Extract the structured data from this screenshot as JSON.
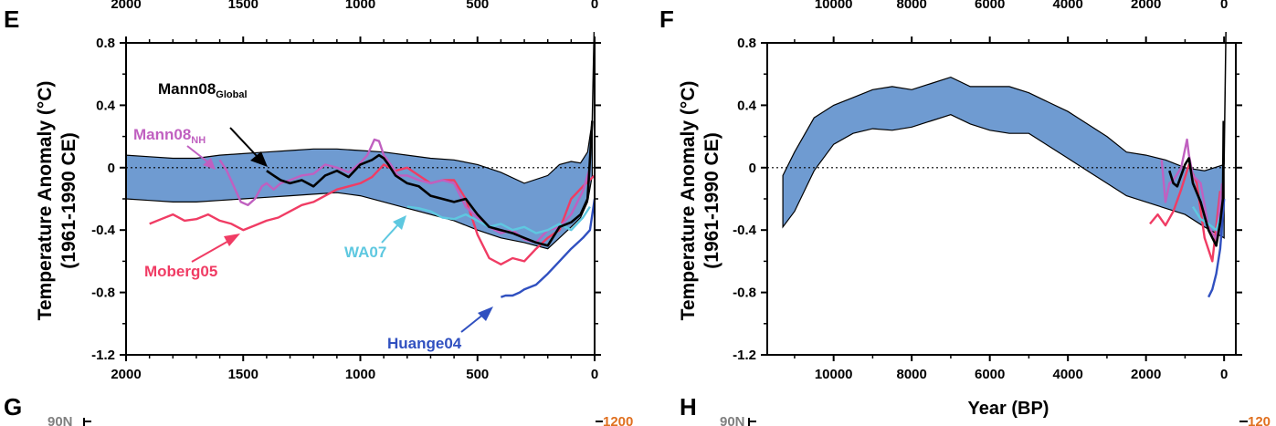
{
  "colors": {
    "band_fill": "#6f9bd1",
    "band_edge": "#000000",
    "mann08_global": "#000000",
    "mann08_nh": "#c060c0",
    "moberg05": "#f03c64",
    "wa07": "#5ec8e0",
    "huange04": "#3050c0"
  },
  "panels": {
    "E": {
      "letter": "E",
      "ylabel_line1": "Temperature Anomaly (°C)",
      "ylabel_line2": "(1961-1990 CE)",
      "annotations": {
        "mann08_global": "Mann08",
        "mann08_global_sub": "Global",
        "mann08_nh": "Mann08",
        "mann08_nh_sub": "NH",
        "moberg05": "Moberg05",
        "wa07": "WA07",
        "huange04": "Huange04"
      }
    },
    "F": {
      "letter": "F",
      "ylabel_line1": "Temperature Anomaly (°C)",
      "ylabel_line2": "(1961-1990 CE)",
      "xlabel": "Year (BP)"
    },
    "G": {
      "letter": "G",
      "lat_label": "90N",
      "right_label": "1200"
    },
    "H": {
      "letter": "H",
      "lat_label": "90N",
      "right_label": "120"
    }
  },
  "chart_data": [
    {
      "type": "line",
      "panel": "E",
      "xlabel": "",
      "ylabel": "Temperature Anomaly (°C) (1961-1990 CE)",
      "xlim": [
        2000,
        0
      ],
      "ylim": [
        -1.2,
        0.8
      ],
      "x_ticks": [
        "2000",
        "1500",
        "1000",
        "500",
        "0"
      ],
      "top_x_ticks": [
        "2000",
        "1500",
        "1000",
        "500",
        "0"
      ],
      "y_ticks": [
        "0.8",
        "0.4",
        "0",
        "-0.4",
        "-0.8",
        "-1.2"
      ],
      "zero_line": "dotted",
      "band": {
        "x": [
          2000,
          1900,
          1800,
          1700,
          1600,
          1500,
          1400,
          1300,
          1200,
          1100,
          1000,
          900,
          800,
          700,
          600,
          500,
          400,
          300,
          200,
          150,
          100,
          60,
          30,
          10
        ],
        "upper": [
          0.08,
          0.07,
          0.06,
          0.06,
          0.08,
          0.09,
          0.1,
          0.11,
          0.12,
          0.12,
          0.11,
          0.1,
          0.08,
          0.06,
          0.05,
          0.02,
          -0.03,
          -0.1,
          -0.05,
          0.02,
          0.04,
          0.03,
          0.1,
          0.3
        ],
        "lower": [
          -0.2,
          -0.21,
          -0.22,
          -0.22,
          -0.21,
          -0.2,
          -0.19,
          -0.18,
          -0.17,
          -0.16,
          -0.18,
          -0.22,
          -0.26,
          -0.3,
          -0.34,
          -0.4,
          -0.45,
          -0.48,
          -0.52,
          -0.45,
          -0.38,
          -0.32,
          -0.22,
          -0.05
        ]
      },
      "series": [
        {
          "name": "Moberg05",
          "x": [
            1900,
            1850,
            1800,
            1750,
            1700,
            1650,
            1600,
            1550,
            1500,
            1450,
            1400,
            1350,
            1300,
            1250,
            1200,
            1150,
            1100,
            1050,
            1000,
            950,
            900,
            850,
            800,
            750,
            700,
            650,
            600,
            550,
            500,
            450,
            400,
            350,
            300,
            250,
            200,
            150,
            100,
            50,
            0
          ],
          "y": [
            -0.36,
            -0.33,
            -0.3,
            -0.34,
            -0.33,
            -0.3,
            -0.34,
            -0.36,
            -0.4,
            -0.37,
            -0.34,
            -0.32,
            -0.28,
            -0.24,
            -0.22,
            -0.18,
            -0.14,
            -0.12,
            -0.1,
            -0.06,
            0.02,
            -0.02,
            0.0,
            -0.05,
            -0.1,
            -0.08,
            -0.08,
            -0.2,
            -0.43,
            -0.58,
            -0.62,
            -0.58,
            -0.6,
            -0.52,
            -0.45,
            -0.4,
            -0.2,
            -0.12,
            -0.05
          ]
        },
        {
          "name": "Mann08 NH",
          "x": [
            1600,
            1570,
            1540,
            1510,
            1480,
            1450,
            1420,
            1400,
            1370,
            1340,
            1300,
            1250,
            1200,
            1150,
            1100,
            1050,
            1000,
            970,
            940,
            920,
            900,
            870,
            840,
            800,
            750,
            700,
            650,
            600,
            550,
            500,
            450,
            400,
            350,
            300,
            250,
            200,
            150,
            100,
            50,
            20
          ],
          "y": [
            0.05,
            -0.02,
            -0.12,
            -0.22,
            -0.24,
            -0.2,
            -0.12,
            -0.1,
            -0.14,
            -0.1,
            -0.08,
            -0.05,
            -0.04,
            0.02,
            0.0,
            -0.03,
            0.03,
            0.08,
            0.18,
            0.17,
            0.08,
            0.02,
            -0.05,
            -0.05,
            -0.08,
            -0.1,
            -0.08,
            -0.1,
            -0.25,
            -0.32,
            -0.38,
            -0.42,
            -0.4,
            -0.46,
            -0.48,
            -0.4,
            -0.38,
            -0.3,
            -0.15,
            0.0
          ]
        },
        {
          "name": "Mann08 Global",
          "x": [
            1400,
            1370,
            1340,
            1300,
            1250,
            1200,
            1150,
            1100,
            1050,
            1000,
            950,
            920,
            900,
            880,
            850,
            800,
            750,
            700,
            650,
            600,
            550,
            500,
            450,
            400,
            350,
            300,
            250,
            200,
            150,
            100,
            60,
            30,
            10
          ],
          "y": [
            -0.02,
            -0.05,
            -0.08,
            -0.1,
            -0.08,
            -0.12,
            -0.05,
            -0.02,
            -0.06,
            0.02,
            0.05,
            0.08,
            0.06,
            0.02,
            -0.05,
            -0.1,
            -0.12,
            -0.18,
            -0.2,
            -0.22,
            -0.2,
            -0.3,
            -0.38,
            -0.4,
            -0.42,
            -0.45,
            -0.48,
            -0.5,
            -0.38,
            -0.35,
            -0.3,
            -0.2,
            0.3
          ]
        },
        {
          "name": "WA07",
          "x": [
            800,
            750,
            700,
            650,
            600,
            550,
            500,
            450,
            400,
            350,
            300,
            250,
            200,
            150,
            100,
            50,
            20
          ],
          "y": [
            -0.25,
            -0.26,
            -0.28,
            -0.32,
            -0.33,
            -0.3,
            -0.34,
            -0.38,
            -0.36,
            -0.4,
            -0.38,
            -0.42,
            -0.4,
            -0.36,
            -0.4,
            -0.32,
            -0.25
          ]
        },
        {
          "name": "Huange04",
          "x": [
            400,
            380,
            350,
            320,
            300,
            250,
            200,
            150,
            100,
            50,
            20,
            0
          ],
          "y": [
            -0.83,
            -0.82,
            -0.82,
            -0.8,
            -0.78,
            -0.75,
            -0.68,
            -0.6,
            -0.52,
            -0.45,
            -0.4,
            -0.2
          ]
        }
      ]
    },
    {
      "type": "line",
      "panel": "F",
      "xlabel": "Year (BP)",
      "ylabel": "Temperature Anomaly (°C) (1961-1990 CE)",
      "xlim": [
        11700,
        -300
      ],
      "ylim": [
        -1.2,
        0.8
      ],
      "x_ticks": [
        "10000",
        "8000",
        "6000",
        "4000",
        "2000",
        "0"
      ],
      "top_x_ticks": [
        "10000",
        "8000",
        "6000",
        "4000",
        "2000",
        "0"
      ],
      "y_ticks": [
        "0.8",
        "0.4",
        "0",
        "-0.4",
        "-0.8",
        "-1.2"
      ],
      "zero_line": "dotted",
      "band": {
        "x": [
          11300,
          11000,
          10500,
          10000,
          9500,
          9000,
          8500,
          8000,
          7500,
          7000,
          6500,
          6000,
          5500,
          5000,
          4500,
          4000,
          3500,
          3000,
          2500,
          2000,
          1500,
          1000,
          500,
          0
        ],
        "upper": [
          -0.05,
          0.1,
          0.32,
          0.4,
          0.45,
          0.5,
          0.52,
          0.5,
          0.54,
          0.58,
          0.52,
          0.52,
          0.52,
          0.48,
          0.42,
          0.36,
          0.28,
          0.2,
          0.1,
          0.08,
          0.05,
          0.0,
          -0.02,
          0.02
        ],
        "lower": [
          -0.38,
          -0.28,
          -0.02,
          0.15,
          0.22,
          0.25,
          0.24,
          0.26,
          0.3,
          0.34,
          0.28,
          0.24,
          0.22,
          0.22,
          0.14,
          0.06,
          -0.02,
          -0.1,
          -0.18,
          -0.22,
          -0.26,
          -0.3,
          -0.38,
          -0.45
        ]
      },
      "series": [
        {
          "name": "Moberg05",
          "x": [
            1900,
            1700,
            1500,
            1300,
            1100,
            900,
            700,
            500,
            300,
            100
          ],
          "y": [
            -0.36,
            -0.3,
            -0.37,
            -0.28,
            -0.14,
            0.02,
            -0.1,
            -0.45,
            -0.6,
            -0.15
          ]
        },
        {
          "name": "Mann08 NH",
          "x": [
            1600,
            1500,
            1400,
            1300,
            1100,
            950,
            900,
            800,
            600,
            400,
            200,
            50
          ],
          "y": [
            0.05,
            -0.22,
            -0.1,
            -0.08,
            0.0,
            0.18,
            0.08,
            -0.05,
            -0.1,
            -0.38,
            -0.46,
            -0.1
          ]
        },
        {
          "name": "Mann08 Global",
          "x": [
            1400,
            1300,
            1200,
            1000,
            900,
            800,
            600,
            400,
            200,
            100,
            30,
            10
          ],
          "y": [
            -0.02,
            -0.1,
            -0.12,
            0.02,
            0.06,
            -0.1,
            -0.22,
            -0.4,
            -0.5,
            -0.35,
            -0.2,
            0.3
          ]
        },
        {
          "name": "WA07",
          "x": [
            800,
            600,
            400,
            200,
            20
          ],
          "y": [
            -0.25,
            -0.33,
            -0.36,
            -0.4,
            -0.25
          ]
        },
        {
          "name": "Huange04",
          "x": [
            400,
            300,
            200,
            100,
            0
          ],
          "y": [
            -0.83,
            -0.78,
            -0.68,
            -0.52,
            -0.2
          ]
        }
      ]
    }
  ]
}
